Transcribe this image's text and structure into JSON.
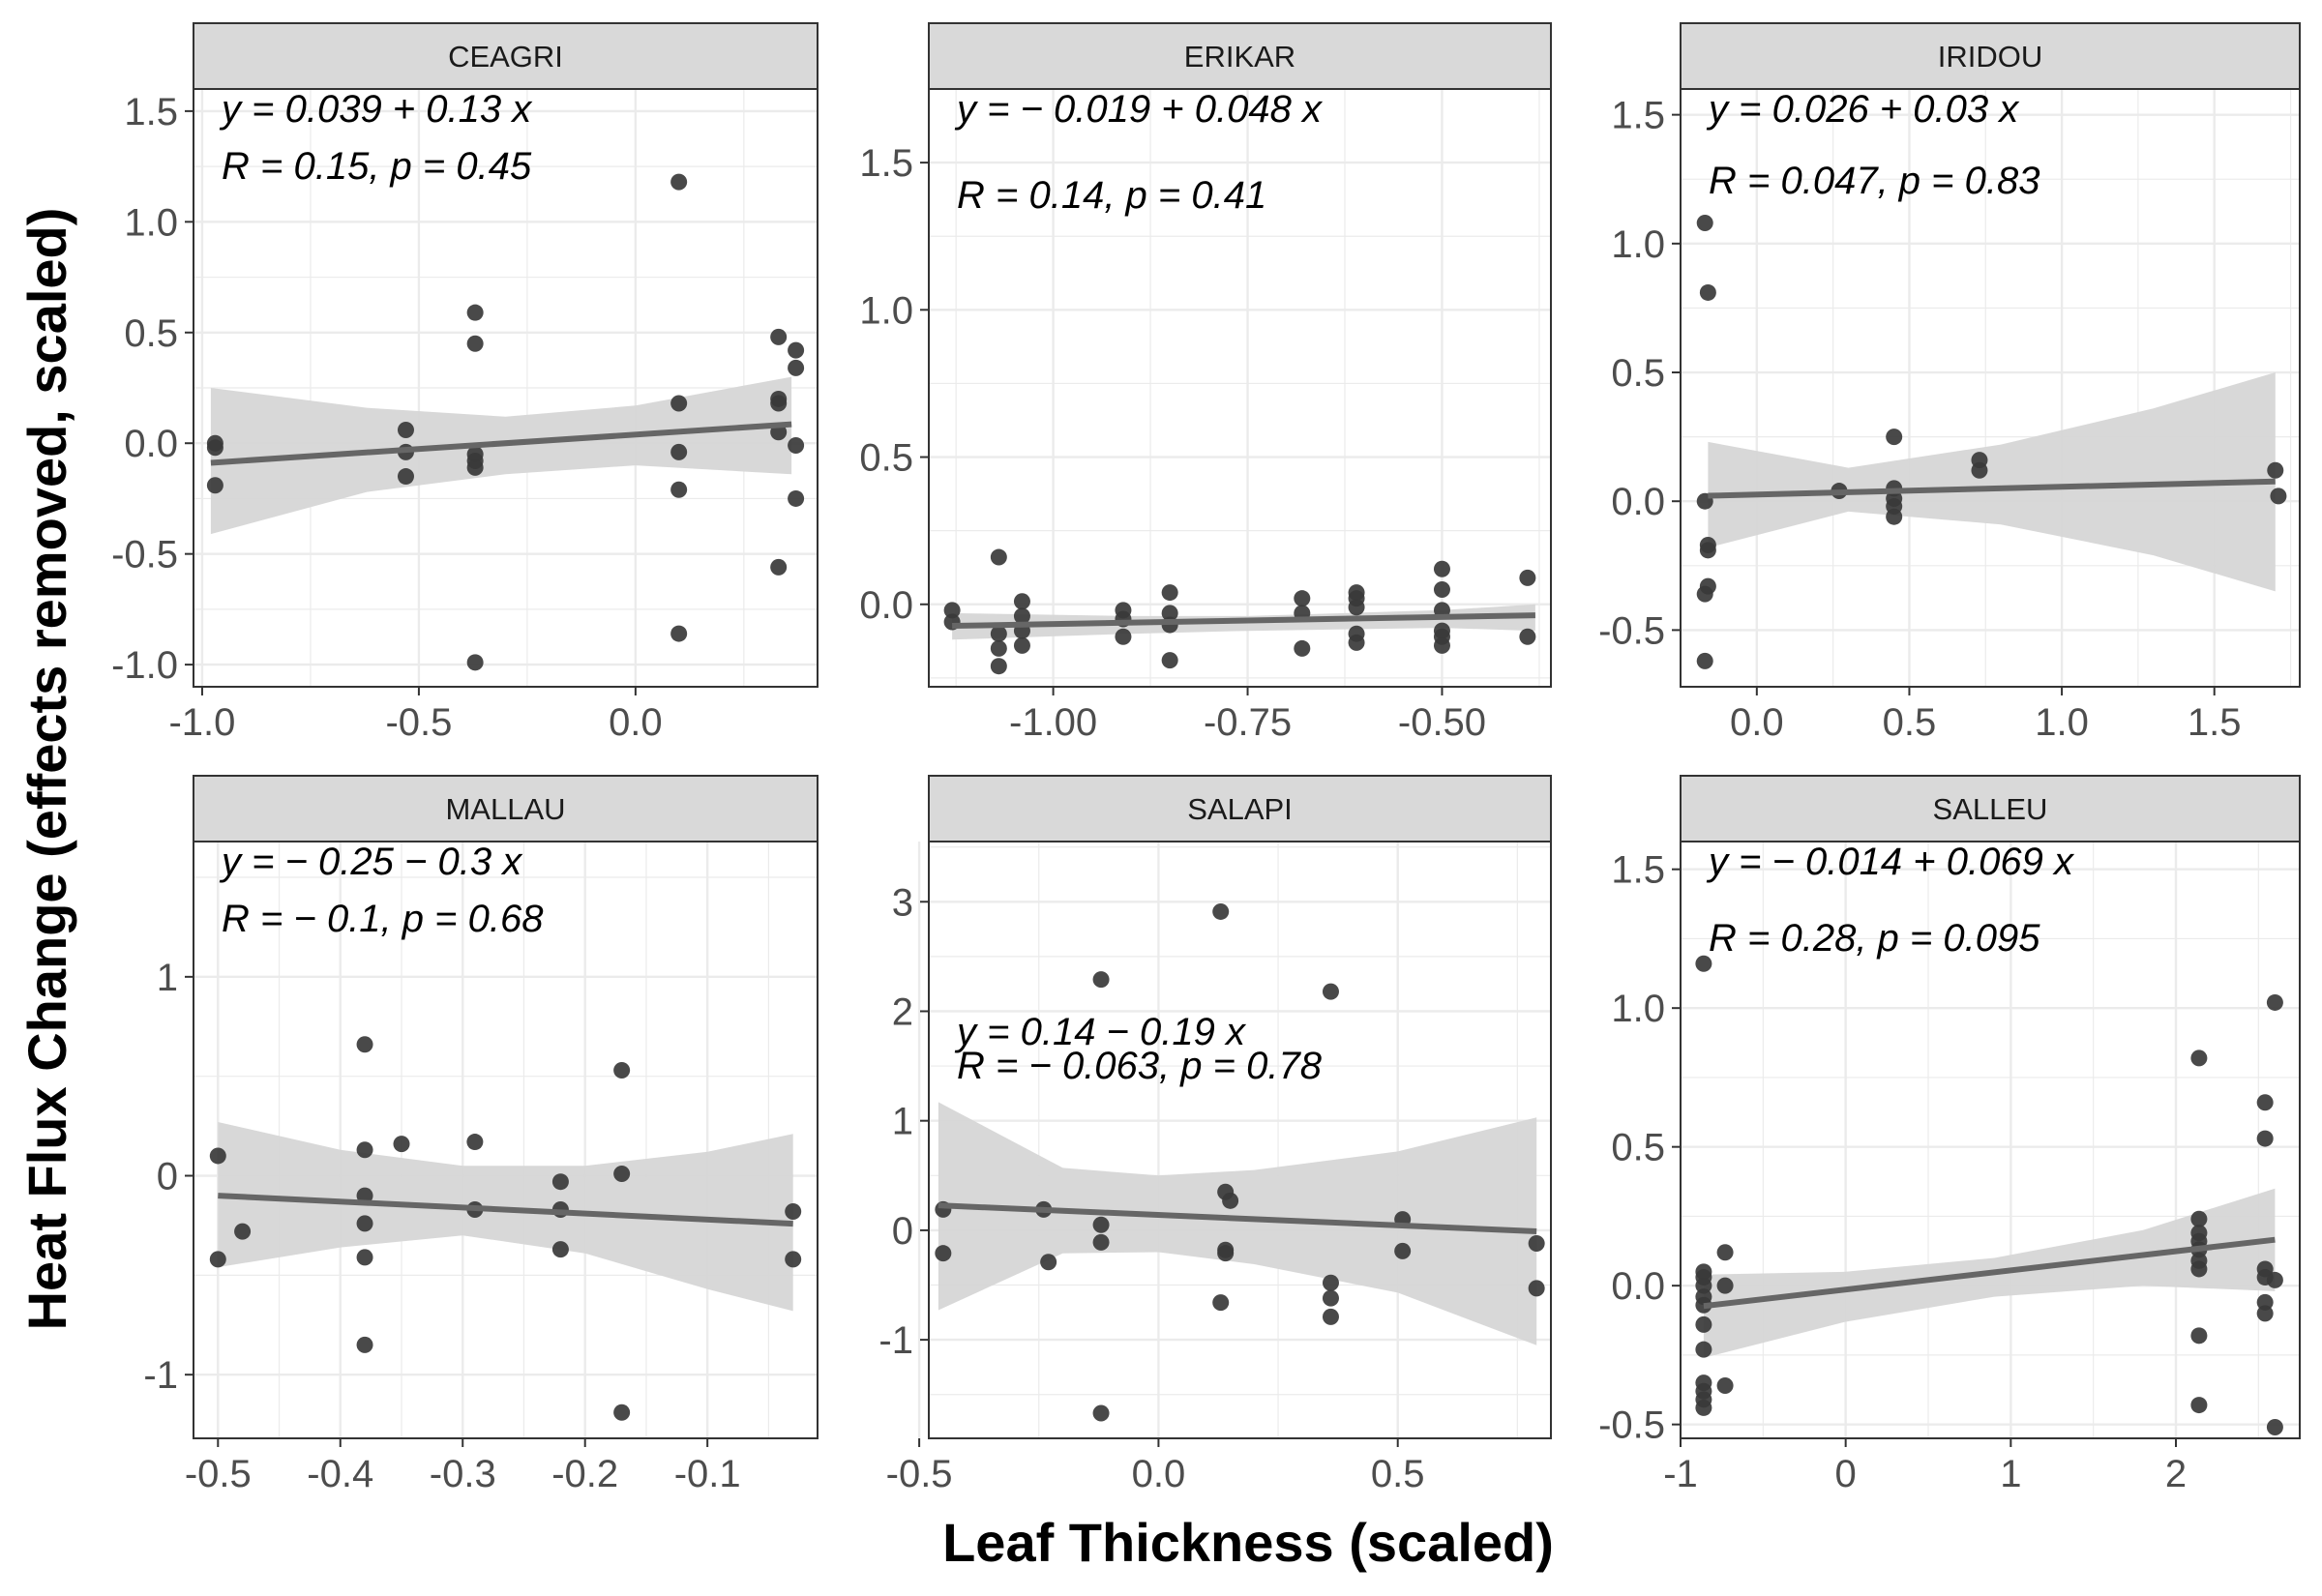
{
  "chart_data": {
    "type": "scatter",
    "xlabel": "Leaf Thickness (scaled)",
    "ylabel": "Heat Flux Change (effects removed, scaled)",
    "grid": true,
    "colors": {
      "point": "#3a3a3a",
      "line": "#666666",
      "ribbon": "#d6d6d6",
      "strip_bg": "#d9d9d9",
      "panel_border": "#333333",
      "grid": "#ebebeb"
    },
    "panels": [
      {
        "name": "CEAGRI",
        "xlim": [
          -1.02,
          0.42
        ],
        "ylim": [
          -1.1,
          1.6
        ],
        "xticks": [
          -1.0,
          -0.5,
          0.0
        ],
        "xtick_labels": [
          "-1.0",
          "-0.5",
          "0.0"
        ],
        "yticks": [
          -1.0,
          -0.5,
          0.0,
          0.5,
          1.0,
          1.5
        ],
        "ytick_labels": [
          "-1.0",
          "-0.5",
          "0.0",
          "0.5",
          "1.0",
          "1.5"
        ],
        "equation": "y = 0.039 + 0.13 x",
        "stats": "R = 0.15, p = 0.45",
        "intercept": 0.039,
        "slope": 0.13,
        "fit_x": [
          -0.98,
          0.36
        ],
        "ribbon": {
          "x": [
            -0.98,
            -0.62,
            -0.3,
            0.0,
            0.36
          ],
          "upper": [
            0.25,
            0.16,
            0.12,
            0.17,
            0.3
          ],
          "lower": [
            -0.41,
            -0.22,
            -0.14,
            -0.1,
            -0.14
          ]
        },
        "points": [
          [
            -0.97,
            0.0
          ],
          [
            -0.97,
            -0.02
          ],
          [
            -0.97,
            -0.19
          ],
          [
            -0.53,
            0.06
          ],
          [
            -0.53,
            -0.04
          ],
          [
            -0.53,
            -0.15
          ],
          [
            -0.37,
            0.59
          ],
          [
            -0.37,
            0.45
          ],
          [
            -0.37,
            -0.05
          ],
          [
            -0.37,
            -0.08
          ],
          [
            -0.37,
            -0.11
          ],
          [
            -0.37,
            -0.99
          ],
          [
            0.1,
            1.18
          ],
          [
            0.1,
            0.18
          ],
          [
            0.1,
            -0.04
          ],
          [
            0.1,
            -0.21
          ],
          [
            0.1,
            -0.86
          ],
          [
            0.33,
            0.48
          ],
          [
            0.33,
            0.2
          ],
          [
            0.33,
            0.18
          ],
          [
            0.33,
            0.05
          ],
          [
            0.33,
            -0.56
          ],
          [
            0.37,
            0.42
          ],
          [
            0.37,
            0.34
          ],
          [
            0.37,
            -0.01
          ],
          [
            0.37,
            -0.25
          ]
        ]
      },
      {
        "name": "ERIKAR",
        "xlim": [
          -1.16,
          -0.36
        ],
        "ylim": [
          -0.28,
          1.75
        ],
        "xticks": [
          -1.0,
          -0.75,
          -0.5
        ],
        "xtick_labels": [
          "-1.00",
          "-0.75",
          "-0.50"
        ],
        "yticks": [
          0.0,
          0.5,
          1.0,
          1.5
        ],
        "ytick_labels": [
          "0.0",
          "0.5",
          "1.0",
          "1.5"
        ],
        "equation": "y = − 0.019 + 0.048 x",
        "stats": "R = 0.14, p = 0.41",
        "intercept": -0.019,
        "slope": 0.048,
        "fit_x": [
          -1.13,
          -0.38
        ],
        "ribbon": {
          "x": [
            -1.13,
            -0.9,
            -0.75,
            -0.5,
            -0.38
          ],
          "upper": [
            -0.03,
            -0.04,
            -0.04,
            -0.02,
            0.0
          ],
          "lower": [
            -0.12,
            -0.1,
            -0.09,
            -0.08,
            -0.09
          ]
        },
        "points": [
          [
            -1.13,
            -0.02
          ],
          [
            -1.13,
            -0.06
          ],
          [
            -1.07,
            0.16
          ],
          [
            -1.07,
            -0.1
          ],
          [
            -1.07,
            -0.15
          ],
          [
            -1.07,
            -0.21
          ],
          [
            -1.04,
            0.01
          ],
          [
            -1.04,
            -0.04
          ],
          [
            -1.04,
            -0.09
          ],
          [
            -1.04,
            -0.14
          ],
          [
            -0.91,
            -0.02
          ],
          [
            -0.91,
            -0.05
          ],
          [
            -0.91,
            -0.11
          ],
          [
            -0.85,
            0.04
          ],
          [
            -0.85,
            -0.03
          ],
          [
            -0.85,
            -0.07
          ],
          [
            -0.85,
            -0.19
          ],
          [
            -0.68,
            0.02
          ],
          [
            -0.68,
            -0.03
          ],
          [
            -0.68,
            -0.15
          ],
          [
            -0.61,
            0.04
          ],
          [
            -0.61,
            0.02
          ],
          [
            -0.61,
            -0.01
          ],
          [
            -0.61,
            -0.1
          ],
          [
            -0.61,
            -0.13
          ],
          [
            -0.5,
            0.12
          ],
          [
            -0.5,
            0.05
          ],
          [
            -0.5,
            -0.02
          ],
          [
            -0.5,
            -0.09
          ],
          [
            -0.5,
            -0.11
          ],
          [
            -0.5,
            -0.14
          ],
          [
            -0.39,
            0.09
          ],
          [
            -0.39,
            -0.11
          ]
        ]
      },
      {
        "name": "IRIDOU",
        "xlim": [
          -0.25,
          1.78
        ],
        "ylim": [
          -0.72,
          1.6
        ],
        "xticks": [
          0.0,
          0.5,
          1.0,
          1.5
        ],
        "xtick_labels": [
          "0.0",
          "0.5",
          "1.0",
          "1.5"
        ],
        "yticks": [
          -0.5,
          0.0,
          0.5,
          1.0,
          1.5
        ],
        "ytick_labels": [
          "-0.5",
          "0.0",
          "0.5",
          "1.0",
          "1.5"
        ],
        "equation": "y = 0.026 + 0.03 x",
        "stats": "R = 0.047, p = 0.83",
        "intercept": 0.026,
        "slope": 0.03,
        "fit_x": [
          -0.16,
          1.7
        ],
        "ribbon": {
          "x": [
            -0.16,
            0.3,
            0.8,
            1.3,
            1.7
          ],
          "upper": [
            0.23,
            0.13,
            0.22,
            0.36,
            0.5
          ],
          "lower": [
            -0.18,
            -0.04,
            -0.09,
            -0.21,
            -0.35
          ]
        },
        "points": [
          [
            -0.17,
            1.08
          ],
          [
            -0.16,
            0.81
          ],
          [
            -0.17,
            0.0
          ],
          [
            -0.16,
            -0.17
          ],
          [
            -0.16,
            -0.19
          ],
          [
            -0.17,
            -0.36
          ],
          [
            -0.16,
            -0.33
          ],
          [
            -0.17,
            -0.62
          ],
          [
            0.27,
            0.04
          ],
          [
            0.45,
            0.25
          ],
          [
            0.45,
            0.05
          ],
          [
            0.45,
            0.01
          ],
          [
            0.45,
            -0.02
          ],
          [
            0.45,
            -0.06
          ],
          [
            0.73,
            0.16
          ],
          [
            0.73,
            0.12
          ],
          [
            1.7,
            0.12
          ],
          [
            1.71,
            0.02
          ]
        ]
      },
      {
        "name": "MALLAU",
        "xlim": [
          -0.52,
          -0.01
        ],
        "ylim": [
          -1.32,
          1.68
        ],
        "xticks": [
          -0.5,
          -0.4,
          -0.3,
          -0.2,
          -0.1
        ],
        "xtick_labels": [
          "-0.5",
          "-0.4",
          "-0.3",
          "-0.2",
          "-0.1"
        ],
        "yticks": [
          -1,
          0,
          1
        ],
        "ytick_labels": [
          "-1",
          "0",
          "1"
        ],
        "equation": "y = − 0.25 − 0.3 x",
        "stats": "R = − 0.1, p = 0.68",
        "intercept": -0.25,
        "slope": -0.3,
        "fit_x": [
          -0.5,
          -0.03
        ],
        "ribbon": {
          "x": [
            -0.5,
            -0.4,
            -0.3,
            -0.2,
            -0.1,
            -0.03
          ],
          "upper": [
            0.27,
            0.13,
            0.05,
            0.05,
            0.12,
            0.21
          ],
          "lower": [
            -0.46,
            -0.36,
            -0.3,
            -0.39,
            -0.57,
            -0.68
          ]
        },
        "points": [
          [
            -0.5,
            0.1
          ],
          [
            -0.5,
            -0.42
          ],
          [
            -0.48,
            -0.28
          ],
          [
            -0.38,
            0.66
          ],
          [
            -0.38,
            0.13
          ],
          [
            -0.38,
            -0.1
          ],
          [
            -0.38,
            -0.24
          ],
          [
            -0.38,
            -0.41
          ],
          [
            -0.38,
            -0.85
          ],
          [
            -0.35,
            0.16
          ],
          [
            -0.29,
            0.17
          ],
          [
            -0.29,
            -0.17
          ],
          [
            -0.22,
            -0.03
          ],
          [
            -0.22,
            -0.17
          ],
          [
            -0.22,
            -0.37
          ],
          [
            -0.17,
            0.53
          ],
          [
            -0.17,
            0.01
          ],
          [
            -0.17,
            -1.19
          ],
          [
            -0.03,
            -0.18
          ],
          [
            -0.03,
            -0.42
          ]
        ]
      },
      {
        "name": "SALAPI",
        "xlim": [
          -0.48,
          0.82
        ],
        "ylim": [
          -1.9,
          3.55
        ],
        "xticks": [
          -0.5,
          0.0,
          0.5
        ],
        "xtick_labels": [
          "-0.5",
          "0.0",
          "0.5"
        ],
        "yticks": [
          -1,
          0,
          1,
          2,
          3
        ],
        "ytick_labels": [
          "-1",
          "0",
          "1",
          "2",
          "3"
        ],
        "equation": "y = 0.14 − 0.19 x",
        "stats": "R = − 0.063, p = 0.78",
        "intercept": 0.14,
        "slope": -0.19,
        "fit_x": [
          -0.46,
          0.79
        ],
        "ribbon": {
          "x": [
            -0.46,
            -0.2,
            0.0,
            0.2,
            0.5,
            0.79
          ],
          "upper": [
            1.17,
            0.57,
            0.5,
            0.55,
            0.72,
            1.03
          ],
          "lower": [
            -0.73,
            -0.21,
            -0.2,
            -0.31,
            -0.57,
            -1.05
          ]
        },
        "points": [
          [
            -0.45,
            0.19
          ],
          [
            -0.45,
            -0.21
          ],
          [
            -0.24,
            0.19
          ],
          [
            -0.23,
            -0.29
          ],
          [
            -0.12,
            2.29
          ],
          [
            -0.12,
            0.05
          ],
          [
            -0.12,
            -0.11
          ],
          [
            -0.12,
            -1.67
          ],
          [
            0.13,
            2.91
          ],
          [
            0.14,
            0.35
          ],
          [
            0.15,
            0.27
          ],
          [
            0.14,
            -0.18
          ],
          [
            0.14,
            -0.21
          ],
          [
            0.13,
            -0.66
          ],
          [
            0.36,
            2.18
          ],
          [
            0.36,
            -0.48
          ],
          [
            0.36,
            -0.62
          ],
          [
            0.36,
            -0.79
          ],
          [
            0.51,
            0.1
          ],
          [
            0.51,
            -0.19
          ],
          [
            0.79,
            -0.12
          ],
          [
            0.79,
            -0.53
          ]
        ]
      },
      {
        "name": "SALLEU",
        "xlim": [
          -1.0,
          2.75
        ],
        "ylim": [
          -0.55,
          1.6
        ],
        "xticks": [
          -1,
          0,
          1,
          2
        ],
        "xtick_labels": [
          "-1",
          "0",
          "1",
          "2"
        ],
        "yticks": [
          -0.5,
          0.0,
          0.5,
          1.0,
          1.5
        ],
        "ytick_labels": [
          "-0.5",
          "0.0",
          "0.5",
          "1.0",
          "1.5"
        ],
        "equation": "y = − 0.014 + 0.069 x",
        "stats": "R = 0.28, p = 0.095",
        "intercept": -0.014,
        "slope": 0.069,
        "fit_x": [
          -0.86,
          2.6
        ],
        "ribbon": {
          "x": [
            -0.86,
            0.0,
            0.9,
            1.8,
            2.6
          ],
          "upper": [
            0.04,
            0.05,
            0.1,
            0.2,
            0.35
          ],
          "lower": [
            -0.26,
            -0.13,
            -0.04,
            0.0,
            -0.02
          ]
        },
        "points": [
          [
            -0.86,
            1.16
          ],
          [
            -0.86,
            0.05
          ],
          [
            -0.86,
            0.03
          ],
          [
            -0.86,
            0.0
          ],
          [
            -0.86,
            -0.04
          ],
          [
            -0.86,
            -0.07
          ],
          [
            -0.86,
            -0.14
          ],
          [
            -0.86,
            -0.23
          ],
          [
            -0.86,
            -0.35
          ],
          [
            -0.86,
            -0.38
          ],
          [
            -0.86,
            -0.41
          ],
          [
            -0.86,
            -0.44
          ],
          [
            -0.73,
            0.12
          ],
          [
            -0.73,
            0.0
          ],
          [
            -0.73,
            -0.36
          ],
          [
            2.14,
            0.82
          ],
          [
            2.14,
            0.24
          ],
          [
            2.14,
            0.19
          ],
          [
            2.14,
            0.16
          ],
          [
            2.14,
            0.13
          ],
          [
            2.14,
            0.09
          ],
          [
            2.14,
            0.06
          ],
          [
            2.14,
            -0.18
          ],
          [
            2.14,
            -0.43
          ],
          [
            2.54,
            0.66
          ],
          [
            2.54,
            0.53
          ],
          [
            2.54,
            0.06
          ],
          [
            2.54,
            0.03
          ],
          [
            2.54,
            -0.06
          ],
          [
            2.54,
            -0.1
          ],
          [
            2.6,
            1.02
          ],
          [
            2.6,
            0.02
          ],
          [
            2.6,
            -0.51
          ]
        ]
      }
    ]
  }
}
